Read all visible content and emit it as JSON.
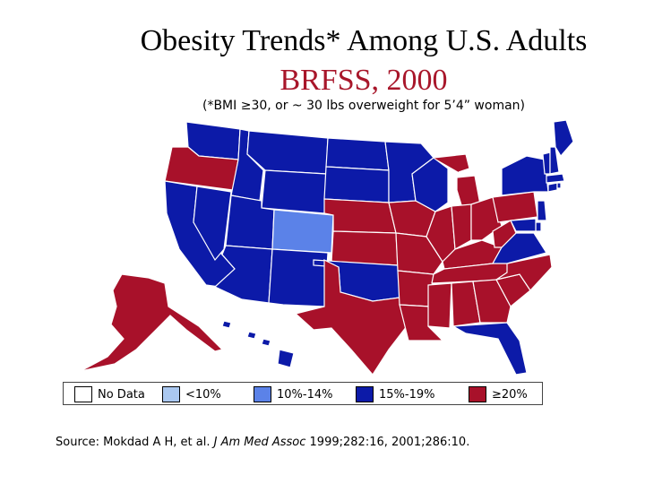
{
  "title_line1": "Obesity Trends* Among U.S. Adults",
  "title_line2": "BRFSS, 2000",
  "subtitle": "(*BMI ≥30, or ~ 30 lbs overweight for 5’4” woman)",
  "colors": {
    "no_data": "#ffffff",
    "lt10": "#aac8f0",
    "10_14": "#5b82e8",
    "15_19": "#0c1aa8",
    "ge20": "#a8112a"
  },
  "legend": [
    {
      "label": "No Data",
      "color_key": "no_data"
    },
    {
      "label": "<10%",
      "color_key": "lt10"
    },
    {
      "label": "10%-14%",
      "color_key": "10_14"
    },
    {
      "label": "15%-19%",
      "color_key": "15_19"
    },
    {
      "label": "≥20%",
      "color_key": "ge20"
    }
  ],
  "states": {
    "WA": "15_19",
    "OR": "ge20",
    "CA": "15_19",
    "NV": "15_19",
    "ID": "15_19",
    "MT": "15_19",
    "WY": "15_19",
    "UT": "15_19",
    "AZ": "15_19",
    "CO": "10_14",
    "NM": "15_19",
    "ND": "15_19",
    "SD": "15_19",
    "NE": "ge20",
    "KS": "ge20",
    "OK": "15_19",
    "TX": "ge20",
    "MN": "15_19",
    "IA": "ge20",
    "MO": "ge20",
    "AR": "ge20",
    "LA": "ge20",
    "WI": "15_19",
    "IL": "ge20",
    "MI": "ge20",
    "IN": "ge20",
    "OH": "ge20",
    "KY": "ge20",
    "TN": "ge20",
    "MS": "ge20",
    "AL": "ge20",
    "GA": "ge20",
    "FL": "15_19",
    "SC": "ge20",
    "NC": "ge20",
    "VA": "15_19",
    "WV": "ge20",
    "PA": "ge20",
    "NY": "15_19",
    "NJ": "15_19",
    "DE": "15_19",
    "MD": "15_19",
    "CT": "15_19",
    "RI": "15_19",
    "MA": "15_19",
    "VT": "15_19",
    "NH": "15_19",
    "ME": "15_19",
    "AK": "ge20",
    "HI": "15_19"
  },
  "source": {
    "prefix": "Source: Mokdad A H, et al. ",
    "journal": "J Am Med Assoc",
    "suffix": " 1999;282:16, 2001;286:10."
  }
}
